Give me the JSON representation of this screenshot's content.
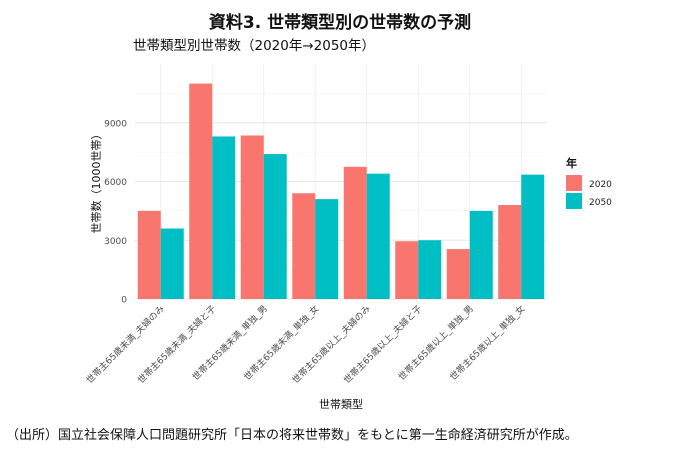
{
  "page": {
    "title": "資料3. 世帯類型別の世帯数の予測",
    "source": "（出所）国立社会保障人口問題研究所「日本の将来世帯数」をもとに第一生命経済研究所が作成。"
  },
  "chart_data": {
    "type": "bar",
    "title": "世帯類型別世帯数（2020年→2050年）",
    "xlabel": "世帯類型",
    "ylabel": "世帯数（1000世帯）",
    "ylim": [
      0,
      12000
    ],
    "yticks": [
      0,
      3000,
      6000,
      9000
    ],
    "grid": true,
    "legend_title": "年",
    "legend_position": "right",
    "categories": [
      "世帯主65歳未満_夫婦のみ",
      "世帯主65歳未満_夫婦と子",
      "世帯主65歳未満_単独_男",
      "世帯主65歳未満_単独_女",
      "世帯主65歳以上_夫婦のみ",
      "世帯主65歳以上_夫婦と子",
      "世帯主65歳以上_単独_男",
      "世帯主65歳以上_単独_女"
    ],
    "series": [
      {
        "name": "2020",
        "color": "#F8766D",
        "values": [
          4500,
          11000,
          8350,
          5400,
          6750,
          2950,
          2550,
          4800
        ]
      },
      {
        "name": "2050",
        "color": "#00BFC4",
        "values": [
          3600,
          8300,
          7400,
          5100,
          6400,
          3000,
          4500,
          6350
        ]
      }
    ]
  }
}
